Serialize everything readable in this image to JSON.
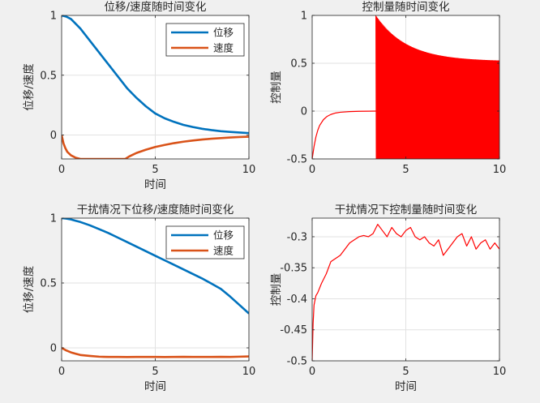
{
  "chart_data": [
    {
      "type": "line",
      "title": "位移/速度随时间变化",
      "xlabel": "时间",
      "ylabel": "位移/速度",
      "xlim": [
        0,
        10
      ],
      "ylim": [
        -0.2,
        1
      ],
      "xticks": [
        0,
        5,
        10
      ],
      "yticks": [
        0,
        0.5,
        1
      ],
      "grid": true,
      "legend": "top-right",
      "series": [
        {
          "name": "位移",
          "color": "#0072bd",
          "x": [
            0,
            0.25,
            0.5,
            0.75,
            1,
            1.25,
            1.5,
            1.75,
            2,
            2.25,
            2.5,
            2.75,
            3,
            3.25,
            3.5,
            3.75,
            4,
            4.5,
            5,
            5.5,
            6,
            6.5,
            7,
            7.5,
            8,
            8.5,
            9,
            9.5,
            10
          ],
          "y": [
            1,
            0.99,
            0.97,
            0.93,
            0.89,
            0.84,
            0.79,
            0.74,
            0.69,
            0.64,
            0.59,
            0.54,
            0.49,
            0.44,
            0.39,
            0.35,
            0.31,
            0.24,
            0.18,
            0.14,
            0.11,
            0.085,
            0.067,
            0.052,
            0.041,
            0.032,
            0.026,
            0.021,
            0.016
          ]
        },
        {
          "name": "速度",
          "color": "#d95319",
          "x": [
            0,
            0.1,
            0.2,
            0.3,
            0.5,
            0.75,
            1,
            1.5,
            2,
            2.5,
            3,
            3.4,
            3.6,
            3.8,
            4,
            4.5,
            5,
            5.5,
            6,
            6.5,
            7,
            7.5,
            8,
            8.5,
            9,
            9.5,
            10
          ],
          "y": [
            0,
            -0.07,
            -0.11,
            -0.14,
            -0.17,
            -0.19,
            -0.2,
            -0.2,
            -0.2,
            -0.2,
            -0.2,
            -0.2,
            -0.18,
            -0.165,
            -0.15,
            -0.123,
            -0.1,
            -0.083,
            -0.068,
            -0.056,
            -0.046,
            -0.038,
            -0.031,
            -0.026,
            -0.021,
            -0.017,
            -0.014
          ]
        }
      ]
    },
    {
      "type": "line",
      "title": "控制量随时间变化",
      "xlabel": "",
      "ylabel": "控制量",
      "xlim": [
        0,
        10
      ],
      "ylim": [
        -0.5,
        1
      ],
      "xticks": [
        0,
        5,
        10
      ],
      "yticks": [
        -0.5,
        0,
        0.5,
        1
      ],
      "grid": true,
      "series": [
        {
          "color": "#ff0000",
          "x": [
            0,
            0.1,
            0.2,
            0.3,
            0.4,
            0.6,
            0.8,
            1,
            1.25,
            1.5,
            2,
            2.5,
            3,
            3.4
          ],
          "y": [
            -0.5,
            -0.37,
            -0.27,
            -0.2,
            -0.15,
            -0.09,
            -0.055,
            -0.035,
            -0.02,
            -0.012,
            -0.005,
            -0.002,
            -0.001,
            0
          ],
          "oscillation": {
            "x_start": 3.4,
            "x_end": 10,
            "upper_start": 1,
            "upper_end": 0.52,
            "lower": -0.5
          }
        }
      ]
    },
    {
      "type": "line",
      "title": "干扰情况下位移/速度随时间变化",
      "xlabel": "时间",
      "ylabel": "位移/速度",
      "xlim": [
        0,
        10
      ],
      "ylim": [
        -0.1,
        1
      ],
      "xticks": [
        0,
        5,
        10
      ],
      "yticks": [
        0,
        0.5,
        1
      ],
      "grid": true,
      "legend": "top-right",
      "series": [
        {
          "name": "位移",
          "color": "#0072bd",
          "x": [
            0,
            0.25,
            0.5,
            0.75,
            1,
            1.5,
            2,
            2.5,
            3,
            3.5,
            4,
            4.5,
            5,
            5.5,
            6,
            6.5,
            7,
            7.5,
            8,
            8.5,
            9,
            9.5,
            10
          ],
          "y": [
            1,
            0.996,
            0.99,
            0.98,
            0.97,
            0.945,
            0.915,
            0.885,
            0.85,
            0.815,
            0.78,
            0.745,
            0.71,
            0.675,
            0.64,
            0.605,
            0.57,
            0.535,
            0.495,
            0.455,
            0.395,
            0.33,
            0.265
          ]
        },
        {
          "name": "速度",
          "color": "#d95319",
          "x": [
            0,
            0.25,
            0.5,
            0.75,
            1,
            1.5,
            2,
            2.5,
            3,
            3.5,
            4,
            4.5,
            5,
            5.5,
            6,
            6.5,
            7,
            7.5,
            8,
            8.5,
            9,
            9.5,
            10
          ],
          "y": [
            0,
            -0.02,
            -0.035,
            -0.045,
            -0.055,
            -0.062,
            -0.068,
            -0.07,
            -0.07,
            -0.071,
            -0.07,
            -0.07,
            -0.07,
            -0.071,
            -0.07,
            -0.069,
            -0.07,
            -0.07,
            -0.07,
            -0.069,
            -0.07,
            -0.068,
            -0.066
          ]
        }
      ]
    },
    {
      "type": "line",
      "title": "干扰情况下控制量随时间变化",
      "xlabel": "时间",
      "ylabel": "控制量",
      "xlim": [
        0,
        10
      ],
      "ylim": [
        -0.5,
        -0.27
      ],
      "xticks": [
        0,
        5,
        10
      ],
      "yticks": [
        -0.5,
        -0.45,
        -0.4,
        -0.35,
        -0.3
      ],
      "grid": true,
      "series": [
        {
          "color": "#ff0000",
          "x": [
            0,
            0.05,
            0.1,
            0.2,
            0.3,
            0.5,
            0.75,
            1,
            1.25,
            1.5,
            1.75,
            2,
            2.25,
            2.5,
            2.75,
            3,
            3.25,
            3.5,
            3.75,
            4,
            4.25,
            4.5,
            4.75,
            5,
            5.25,
            5.5,
            5.75,
            6,
            6.25,
            6.5,
            6.75,
            7,
            7.25,
            7.5,
            7.75,
            8,
            8.25,
            8.5,
            8.75,
            9,
            9.25,
            9.5,
            9.75,
            10
          ],
          "y": [
            -0.5,
            -0.44,
            -0.41,
            -0.395,
            -0.39,
            -0.375,
            -0.36,
            -0.34,
            -0.335,
            -0.33,
            -0.32,
            -0.31,
            -0.305,
            -0.3,
            -0.298,
            -0.3,
            -0.295,
            -0.28,
            -0.29,
            -0.3,
            -0.285,
            -0.295,
            -0.3,
            -0.29,
            -0.285,
            -0.3,
            -0.305,
            -0.3,
            -0.31,
            -0.315,
            -0.305,
            -0.33,
            -0.32,
            -0.31,
            -0.3,
            -0.295,
            -0.315,
            -0.3,
            -0.32,
            -0.31,
            -0.305,
            -0.32,
            -0.31,
            -0.32
          ]
        }
      ]
    }
  ]
}
